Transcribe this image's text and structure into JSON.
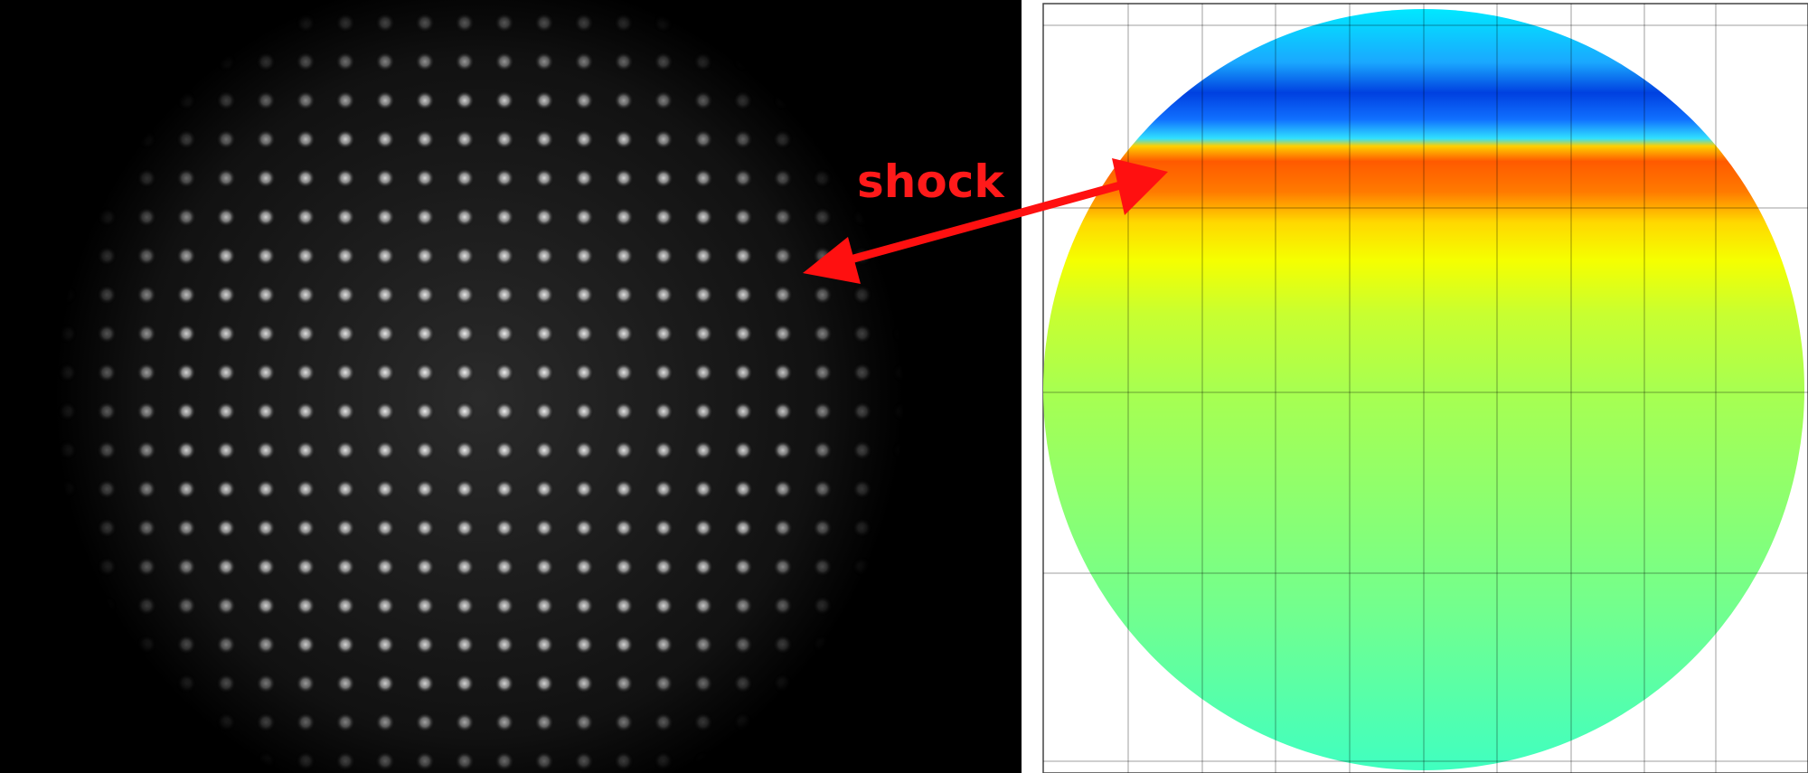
{
  "annotation": "shock"
}
